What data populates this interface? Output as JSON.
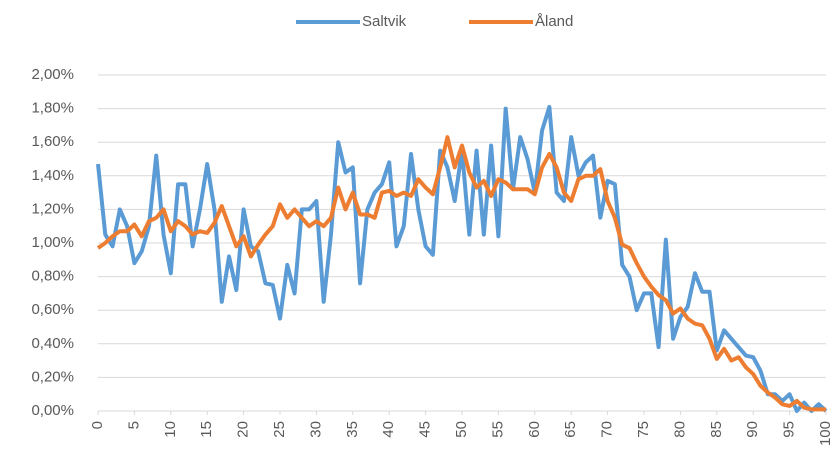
{
  "chart_data": {
    "type": "line",
    "x": [
      0,
      1,
      2,
      3,
      4,
      5,
      6,
      7,
      8,
      9,
      10,
      11,
      12,
      13,
      14,
      15,
      16,
      17,
      18,
      19,
      20,
      21,
      22,
      23,
      24,
      25,
      26,
      27,
      28,
      29,
      30,
      31,
      32,
      33,
      34,
      35,
      36,
      37,
      38,
      39,
      40,
      41,
      42,
      43,
      44,
      45,
      46,
      47,
      48,
      49,
      50,
      51,
      52,
      53,
      54,
      55,
      56,
      57,
      58,
      59,
      60,
      61,
      62,
      63,
      64,
      65,
      66,
      67,
      68,
      69,
      70,
      71,
      72,
      73,
      74,
      75,
      76,
      77,
      78,
      79,
      80,
      81,
      82,
      83,
      84,
      85,
      86,
      87,
      88,
      89,
      90,
      91,
      92,
      93,
      94,
      95,
      96,
      97,
      98,
      99,
      100
    ],
    "series": [
      {
        "name": "Saltvik",
        "color": "#5b9bd5",
        "values": [
          1.47,
          1.05,
          0.98,
          1.2,
          1.1,
          0.88,
          0.95,
          1.1,
          1.52,
          1.05,
          0.82,
          1.35,
          1.35,
          0.98,
          1.2,
          1.47,
          1.2,
          0.65,
          0.92,
          0.72,
          1.2,
          0.98,
          0.95,
          0.76,
          0.75,
          0.55,
          0.87,
          0.7,
          1.2,
          1.2,
          1.25,
          0.65,
          1.05,
          1.6,
          1.42,
          1.45,
          0.76,
          1.2,
          1.3,
          1.35,
          1.48,
          0.98,
          1.1,
          1.53,
          1.2,
          0.98,
          0.93,
          1.55,
          1.45,
          1.25,
          1.55,
          1.05,
          1.55,
          1.05,
          1.58,
          1.04,
          1.8,
          1.32,
          1.63,
          1.5,
          1.3,
          1.67,
          1.81,
          1.3,
          1.25,
          1.63,
          1.4,
          1.48,
          1.52,
          1.15,
          1.37,
          1.35,
          0.87,
          0.8,
          0.6,
          0.7,
          0.7,
          0.38,
          1.02,
          0.43,
          0.56,
          0.62,
          0.82,
          0.71,
          0.71,
          0.36,
          0.48,
          0.43,
          0.38,
          0.33,
          0.32,
          0.24,
          0.1,
          0.1,
          0.06,
          0.1,
          0,
          0.05,
          0,
          0.04,
          0
        ]
      },
      {
        "name": "Åland",
        "color": "#ed7d31",
        "values": [
          0.97,
          1.0,
          1.04,
          1.07,
          1.07,
          1.11,
          1.04,
          1.13,
          1.15,
          1.2,
          1.07,
          1.13,
          1.1,
          1.05,
          1.07,
          1.06,
          1.12,
          1.22,
          1.1,
          0.98,
          1.04,
          0.92,
          0.99,
          1.05,
          1.1,
          1.23,
          1.15,
          1.2,
          1.15,
          1.1,
          1.13,
          1.1,
          1.15,
          1.33,
          1.2,
          1.3,
          1.17,
          1.17,
          1.15,
          1.3,
          1.31,
          1.28,
          1.3,
          1.28,
          1.38,
          1.33,
          1.29,
          1.45,
          1.63,
          1.45,
          1.58,
          1.42,
          1.33,
          1.37,
          1.28,
          1.38,
          1.36,
          1.32,
          1.32,
          1.32,
          1.29,
          1.45,
          1.53,
          1.45,
          1.3,
          1.25,
          1.38,
          1.4,
          1.4,
          1.44,
          1.25,
          1.15,
          0.99,
          0.97,
          0.88,
          0.8,
          0.74,
          0.69,
          0.66,
          0.58,
          0.61,
          0.55,
          0.52,
          0.51,
          0.43,
          0.31,
          0.37,
          0.3,
          0.32,
          0.26,
          0.22,
          0.15,
          0.11,
          0.08,
          0.04,
          0.03,
          0.06,
          0.02,
          0.01,
          0.01,
          0.01
        ]
      }
    ],
    "xlim": [
      0,
      100
    ],
    "xticks": [
      0,
      5,
      10,
      15,
      20,
      25,
      30,
      35,
      40,
      45,
      50,
      55,
      60,
      65,
      70,
      75,
      80,
      85,
      90,
      95,
      100
    ],
    "ylim": [
      0,
      2
    ],
    "yticks": [
      {
        "value": 0,
        "label": "0,00%"
      },
      {
        "value": 0.2,
        "label": "0,20%"
      },
      {
        "value": 0.4,
        "label": "0,40%"
      },
      {
        "value": 0.6,
        "label": "0,60%"
      },
      {
        "value": 0.8,
        "label": "0,80%"
      },
      {
        "value": 1.0,
        "label": "1,00%"
      },
      {
        "value": 1.2,
        "label": "1,20%"
      },
      {
        "value": 1.4,
        "label": "1,40%"
      },
      {
        "value": 1.6,
        "label": "1,60%"
      },
      {
        "value": 1.8,
        "label": "1,80%"
      },
      {
        "value": 2.0,
        "label": "2,00%"
      }
    ],
    "grid": true,
    "legend": "top"
  }
}
